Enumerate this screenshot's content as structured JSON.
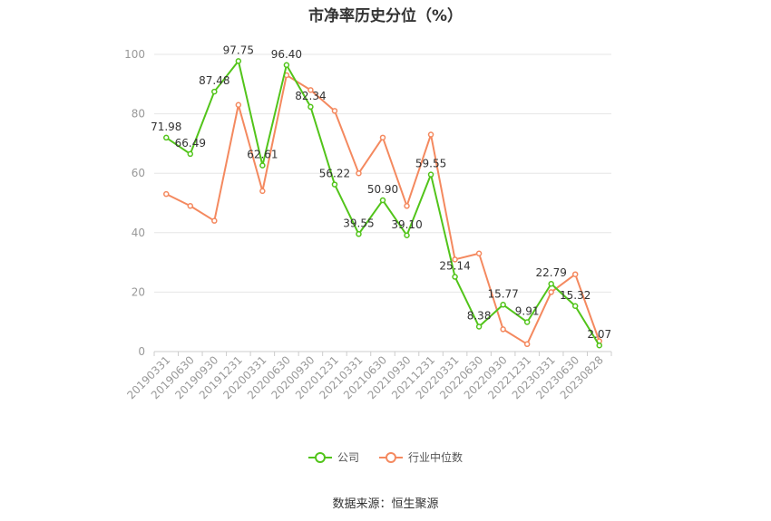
{
  "chart_data": {
    "type": "line",
    "title": "市净率历史分位（%）",
    "categories": [
      "20190331",
      "20190630",
      "20190930",
      "20191231",
      "20200331",
      "20200630",
      "20200930",
      "20201231",
      "20210331",
      "20210630",
      "20210930",
      "20211231",
      "20220331",
      "20220630",
      "20220930",
      "20221231",
      "20230331",
      "20230630",
      "20230828"
    ],
    "series": [
      {
        "name": "公司",
        "color": "#52c41a",
        "values": [
          71.98,
          66.49,
          87.48,
          97.75,
          62.61,
          96.4,
          82.34,
          56.22,
          39.55,
          50.9,
          39.1,
          59.55,
          25.14,
          8.38,
          15.77,
          9.91,
          22.79,
          15.32,
          2.07
        ],
        "labels": [
          "71.98",
          "66.49",
          "87.48",
          "97.75",
          "62.61",
          "96.40",
          "82.34",
          "56.22",
          "39.55",
          "50.90",
          "39.10",
          "59.55",
          "25.14",
          "8.38",
          "15.77",
          "9.91",
          "22.79",
          "15.32",
          "2.07"
        ]
      },
      {
        "name": "行业中位数",
        "color": "#f4895f",
        "values": [
          53,
          49,
          44,
          83,
          54,
          93,
          88,
          81,
          60,
          72,
          49,
          73,
          31,
          33,
          7.5,
          2.5,
          20,
          26,
          3.5
        ]
      }
    ],
    "y_ticks": [
      0,
      20,
      40,
      60,
      80,
      100
    ],
    "ylim": [
      0,
      100
    ],
    "grid": true,
    "legend_position": "bottom"
  },
  "source_text": "数据来源：恒生聚源"
}
